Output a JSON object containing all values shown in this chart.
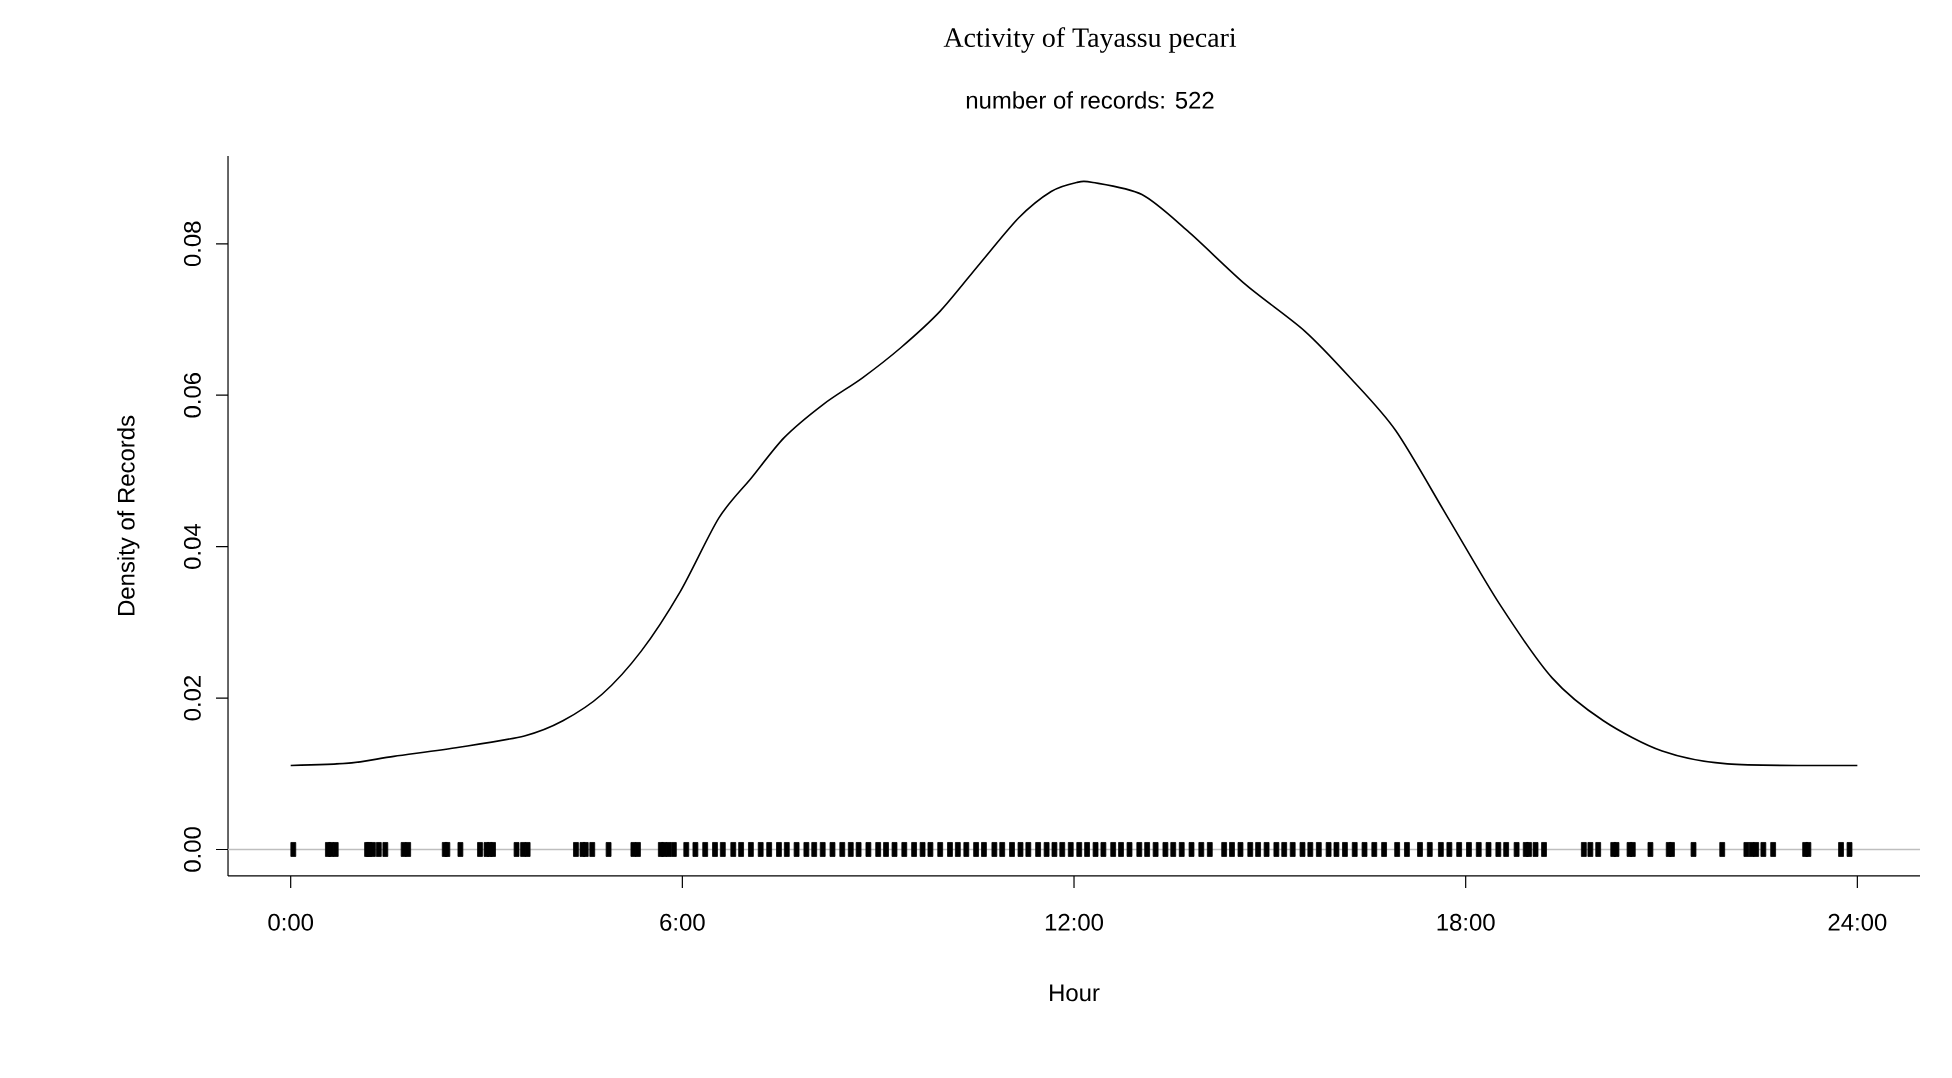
{
  "chart_data": {
    "type": "line",
    "title": "Activity of Tayassu pecari",
    "subtitle": "number of records: 522",
    "xlabel": "Hour",
    "ylabel": "Density of Records",
    "xlim": [
      -0.96,
      24.96
    ],
    "ylim": [
      -0.0035,
      0.0916
    ],
    "xticks": [
      {
        "value": 0,
        "label": "0:00"
      },
      {
        "value": 6,
        "label": "6:00"
      },
      {
        "value": 12,
        "label": "12:00"
      },
      {
        "value": 18,
        "label": "18:00"
      },
      {
        "value": 24,
        "label": "24:00"
      }
    ],
    "yticks": [
      {
        "value": 0,
        "label": "0.00"
      },
      {
        "value": 0.02,
        "label": "0.02"
      },
      {
        "value": 0.04,
        "label": "0.04"
      },
      {
        "value": 0.06,
        "label": "0.06"
      },
      {
        "value": 0.08,
        "label": "0.08"
      }
    ],
    "ref_lines": [
      {
        "axis": "y",
        "value": 0,
        "color": "#bebebe"
      }
    ],
    "series": [
      {
        "color": "#000000",
        "x": [
          0,
          0.89,
          1.58,
          2.58,
          3.58,
          4.17,
          4.77,
          5.37,
          5.97,
          6.56,
          7.06,
          7.56,
          8.16,
          8.76,
          9.35,
          9.95,
          10.55,
          11.15,
          11.65,
          12.04,
          12.29,
          13.04,
          13.74,
          14.63,
          15.53,
          16.23,
          16.93,
          17.73,
          18.52,
          19.32,
          20.11,
          21.01,
          22.01,
          24
        ],
        "values": [
          0.0111,
          0.0114,
          0.0123,
          0.0135,
          0.015,
          0.017,
          0.0205,
          0.0262,
          0.0341,
          0.0438,
          0.0491,
          0.0544,
          0.0588,
          0.0623,
          0.0663,
          0.0711,
          0.0773,
          0.0834,
          0.0869,
          0.0881,
          0.0881,
          0.0865,
          0.0817,
          0.0746,
          0.0685,
          0.0623,
          0.0553,
          0.0438,
          0.0324,
          0.0227,
          0.017,
          0.013,
          0.0113,
          0.0111
        ]
      },
      {
        "type": "scatter",
        "color": "#000000",
        "x": [
          0.04,
          0.57,
          0.62,
          0.69,
          1.17,
          1.2,
          1.26,
          1.35,
          1.45,
          1.73,
          1.8,
          2.36,
          2.4,
          2.6,
          2.9,
          3.0,
          3.05,
          3.1,
          3.46,
          3.56,
          3.63,
          4.37,
          4.47,
          4.52,
          4.62,
          4.87,
          5.25,
          5.32,
          5.67,
          5.72,
          5.79,
          5.87,
          6.06,
          6.2,
          6.35,
          6.5,
          6.62,
          6.78,
          6.9,
          7.05,
          7.2,
          7.33,
          7.48,
          7.6,
          7.75,
          7.9,
          8.02,
          8.15,
          8.3,
          8.45,
          8.58,
          8.7,
          8.85,
          9.0,
          9.12,
          9.25,
          9.4,
          9.55,
          9.68,
          9.8,
          9.95,
          10.1,
          10.22,
          10.35,
          10.5,
          10.62,
          10.78,
          10.9,
          11.05,
          11.18,
          11.3,
          11.45,
          11.58,
          11.7,
          11.82,
          11.95,
          12.08,
          12.2,
          12.33,
          12.45,
          12.6,
          12.72,
          12.85,
          13.0,
          13.12,
          13.25,
          13.4,
          13.52,
          13.65,
          13.8,
          13.95,
          14.08,
          14.3,
          14.42,
          14.55,
          14.7,
          14.82,
          14.95,
          15.1,
          15.22,
          15.35,
          15.5,
          15.62,
          15.75,
          15.9,
          16.02,
          16.15,
          16.3,
          16.45,
          16.6,
          16.75,
          16.95,
          17.1,
          17.3,
          17.45,
          17.62,
          17.75,
          17.9,
          18.05,
          18.2,
          18.35,
          18.5,
          18.62,
          18.78,
          18.92,
          18.97,
          19.07,
          19.2,
          19.81,
          19.91,
          20.03,
          20.26,
          20.31,
          20.51,
          20.56,
          20.83,
          21.11,
          21.16,
          21.49,
          21.93,
          22.3,
          22.38,
          22.45,
          22.56,
          22.71,
          23.2,
          23.25,
          23.75,
          23.88
        ],
        "values": [
          0,
          0,
          0,
          0,
          0,
          0,
          0,
          0,
          0,
          0,
          0,
          0,
          0,
          0,
          0,
          0,
          0,
          0,
          0,
          0,
          0,
          0,
          0,
          0,
          0,
          0,
          0,
          0,
          0,
          0,
          0,
          0,
          0,
          0,
          0,
          0,
          0,
          0,
          0,
          0,
          0,
          0,
          0,
          0,
          0,
          0,
          0,
          0,
          0,
          0,
          0,
          0,
          0,
          0,
          0,
          0,
          0,
          0,
          0,
          0,
          0,
          0,
          0,
          0,
          0,
          0,
          0,
          0,
          0,
          0,
          0,
          0,
          0,
          0,
          0,
          0,
          0,
          0,
          0,
          0,
          0,
          0,
          0,
          0,
          0,
          0,
          0,
          0,
          0,
          0,
          0,
          0,
          0,
          0,
          0,
          0,
          0,
          0,
          0,
          0,
          0,
          0,
          0,
          0,
          0,
          0,
          0,
          0,
          0,
          0,
          0,
          0,
          0,
          0,
          0,
          0,
          0,
          0,
          0,
          0,
          0,
          0,
          0,
          0,
          0,
          0,
          0,
          0,
          0,
          0,
          0,
          0,
          0,
          0,
          0,
          0,
          0,
          0,
          0,
          0,
          0,
          0,
          0,
          0,
          0,
          0,
          0,
          0,
          0
        ]
      }
    ]
  }
}
